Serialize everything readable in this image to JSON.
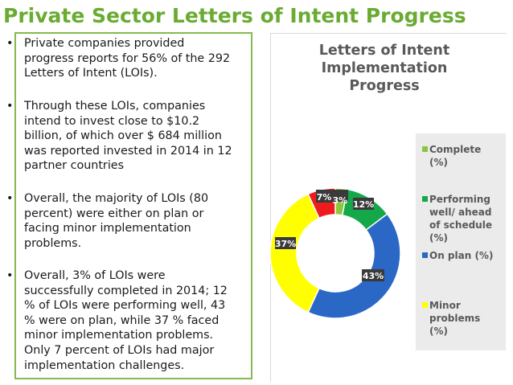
{
  "slide": {
    "title": "Private Sector Letters of Intent Progress"
  },
  "bullets": [
    "Private companies provided progress reports for 56% of the 292 Letters of Intent (LOIs).",
    "Through these LOIs, companies intend to invest close to $10.2 billion, of which over $ 684 million was reported invested in 2014 in 12 partner countries",
    "Overall, the majority of LOIs (80 percent) were either on plan or facing minor implementation problems.",
    "Overall, 3% of LOIs were successfully completed in 2014; 12 % of LOIs were performing well, 43 % were on plan, while 37 % faced minor implementation problems. Only 7 percent of LOIs had major implementation challenges."
  ],
  "bullet_marker": "•",
  "chart_data": {
    "type": "pie",
    "title": [
      "Letters of Intent",
      "Implementation",
      "Progress"
    ],
    "categories": [
      "Complete (%)",
      "Performing well/ ahead of schedule (%)",
      "On plan (%)",
      "Minor problems (%)",
      ""
    ],
    "values": [
      3,
      12,
      43,
      37,
      7
    ],
    "labels": [
      "3%",
      "12%",
      "43%",
      "37%",
      "7%"
    ],
    "colors": [
      "#8cc63f",
      "#15a84b",
      "#2b67c5",
      "#ffff00",
      "#ee1c1c"
    ],
    "legend": {
      "placement": "right",
      "entries": [
        {
          "label": "Complete (%)",
          "lines": [
            "Complete",
            "(%)"
          ],
          "color": "#8cc63f"
        },
        {
          "label": "Performing well/ ahead of schedule (%)",
          "lines": [
            "Performing",
            "well/ ahead",
            "of schedule",
            "(%)"
          ],
          "color": "#15a84b"
        },
        {
          "label": "On plan (%)",
          "lines": [
            "On plan (%)"
          ],
          "color": "#2b67c5"
        },
        {
          "label": "Minor problems (%)",
          "lines": [
            "Minor",
            "problems",
            "(%)"
          ],
          "color": "#ffff00"
        }
      ]
    },
    "label_box_color": "#3a3a3a"
  }
}
